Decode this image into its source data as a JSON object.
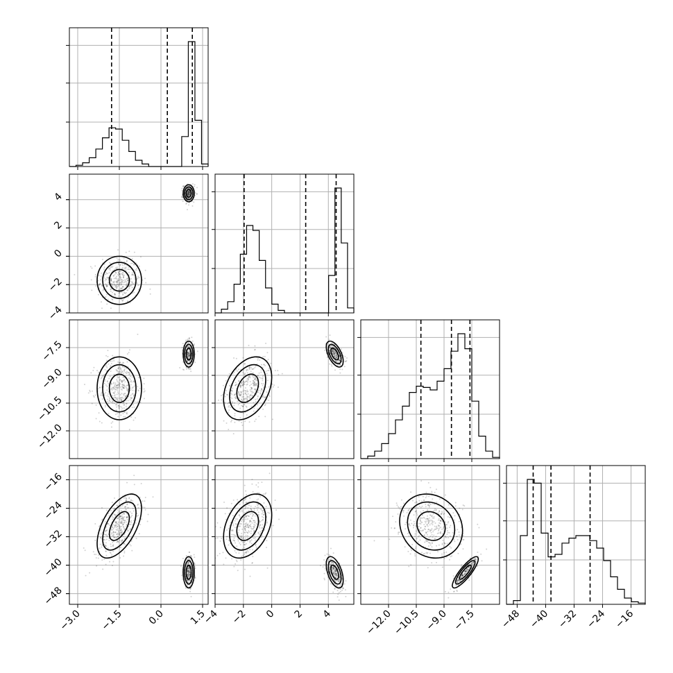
{
  "chart_data": {
    "type": "corner",
    "n_params": 4,
    "grid": true,
    "params": [
      {
        "range": [
          -3.3,
          1.7
        ],
        "ticks": [
          -3.0,
          -1.5,
          0.0,
          1.5
        ],
        "tick_labels": [
          "−3.0",
          "−1.5",
          "0.0",
          "1.5"
        ],
        "quantiles": [
          -1.78,
          0.23,
          1.13
        ],
        "hist": [
          0.0,
          0.01,
          0.03,
          0.07,
          0.14,
          0.23,
          0.31,
          0.3,
          0.21,
          0.12,
          0.05,
          0.02,
          0.0,
          0.0,
          0.0,
          0.0,
          0.0,
          0.24,
          1.0,
          0.37,
          0.02
        ]
      },
      {
        "range": [
          -4,
          5.8
        ],
        "ticks": [
          -4,
          -2,
          0,
          2,
          4
        ],
        "tick_labels": [
          "−4",
          "−2",
          "0",
          "2",
          "4"
        ],
        "quantiles": [
          -1.95,
          2.4,
          4.55
        ],
        "hist": [
          0.0,
          0.03,
          0.09,
          0.23,
          0.47,
          0.7,
          0.66,
          0.42,
          0.2,
          0.07,
          0.02,
          0.0,
          0.0,
          0.0,
          0.0,
          0.0,
          0.0,
          0.0,
          0.3,
          1.0,
          0.56,
          0.04
        ]
      },
      {
        "range": [
          -13.5,
          -6.0
        ],
        "ticks": [
          -12.0,
          -10.5,
          -9.0,
          -7.5
        ],
        "tick_labels": [
          "−12.0",
          "−10.5",
          "−9.0",
          "−7.5"
        ],
        "quantiles": [
          -10.25,
          -8.6,
          -7.6
        ],
        "hist": [
          0.0,
          0.02,
          0.06,
          0.12,
          0.2,
          0.31,
          0.42,
          0.53,
          0.58,
          0.57,
          0.55,
          0.62,
          0.72,
          0.86,
          1.0,
          0.88,
          0.46,
          0.18,
          0.06,
          0.01
        ]
      },
      {
        "range": [
          -51,
          -12
        ],
        "ticks": [
          -48,
          -40,
          -32,
          -24,
          -16
        ],
        "tick_labels": [
          "−48",
          "−40",
          "−32",
          "−24",
          "−16"
        ],
        "quantiles": [
          -43.5,
          -38.5,
          -27.5
        ],
        "hist": [
          0.0,
          0.03,
          0.55,
          1.0,
          0.97,
          0.57,
          0.38,
          0.4,
          0.49,
          0.53,
          0.55,
          0.55,
          0.51,
          0.45,
          0.35,
          0.22,
          0.12,
          0.05,
          0.02,
          0.01
        ]
      }
    ],
    "modes": [
      {
        "weight": 0.6,
        "mean": [
          -1.5,
          -1.7,
          -9.7,
          -29
        ],
        "sd": [
          0.4,
          0.85,
          0.85,
          4.5
        ],
        "corr": {
          "0-3": 0.55,
          "1-3": 0.35,
          "2-3": -0.15,
          "1-2": 0.35
        }
      },
      {
        "weight": 0.4,
        "mean": [
          1.0,
          4.45,
          -7.85,
          -42
        ],
        "sd": [
          0.1,
          0.3,
          0.35,
          2.2
        ],
        "corr": {
          "1-2": -0.55,
          "1-3": -0.5,
          "2-3": 0.85
        }
      }
    ]
  }
}
